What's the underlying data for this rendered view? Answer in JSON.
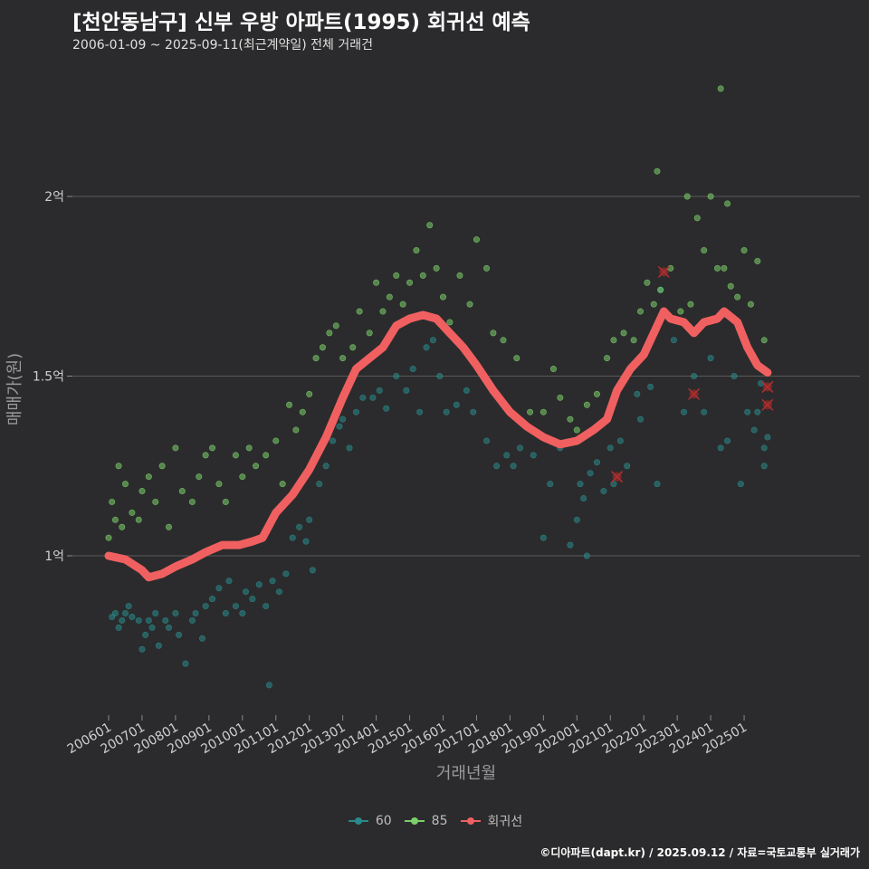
{
  "title": "[천안동남구] 신부 우방 아파트(1995) 회귀선 예측",
  "subtitle": "2006-01-09 ~ 2025-09-11(최근계약일) 전체 거래건",
  "caption": "©디아파트(dapt.kr) / 2025.09.12 / 자료=국토교통부 실거래가",
  "colors": {
    "background": "#2b2b2d",
    "series_60": "#2a8a8a",
    "series_85": "#7ccf6a",
    "regression": "#f06060",
    "grid": "#5a5a5a"
  },
  "chart_data": {
    "type": "scatter",
    "title": "[천안동남구] 신부 우방 아파트(1995) 회귀선 예측",
    "subtitle": "2006-01-09 ~ 2025-09-11(최근계약일) 전체 거래건",
    "xlabel": "거래년월",
    "ylabel": "매매가(원)",
    "xlim": [
      "2006-01",
      "2025-09"
    ],
    "ylim": [
      0.6,
      2.5
    ],
    "grid": true,
    "legend_position": "bottom",
    "x_ticks": [
      "200601",
      "200701",
      "200801",
      "200901",
      "201001",
      "201101",
      "201201",
      "201301",
      "201401",
      "201501",
      "201601",
      "201701",
      "201801",
      "201901",
      "202001",
      "202101",
      "202201",
      "202301",
      "202401",
      "202501"
    ],
    "y_ticks": [
      {
        "value": 1.0,
        "label": "1억"
      },
      {
        "value": 1.5,
        "label": "1.5억"
      },
      {
        "value": 2.0,
        "label": "2억"
      }
    ],
    "legend": [
      "60",
      "85",
      "회귀선"
    ],
    "regression_line": [
      [
        2006.0,
        1.0
      ],
      [
        2006.5,
        0.99
      ],
      [
        2007.0,
        0.96
      ],
      [
        2007.2,
        0.94
      ],
      [
        2007.6,
        0.95
      ],
      [
        2008.0,
        0.97
      ],
      [
        2008.5,
        0.99
      ],
      [
        2008.9,
        1.01
      ],
      [
        2009.4,
        1.03
      ],
      [
        2009.9,
        1.03
      ],
      [
        2010.3,
        1.04
      ],
      [
        2010.6,
        1.05
      ],
      [
        2011.0,
        1.12
      ],
      [
        2011.5,
        1.17
      ],
      [
        2012.0,
        1.24
      ],
      [
        2012.5,
        1.33
      ],
      [
        2013.0,
        1.44
      ],
      [
        2013.4,
        1.52
      ],
      [
        2013.8,
        1.55
      ],
      [
        2014.2,
        1.58
      ],
      [
        2014.6,
        1.64
      ],
      [
        2015.0,
        1.66
      ],
      [
        2015.4,
        1.67
      ],
      [
        2015.8,
        1.66
      ],
      [
        2016.2,
        1.62
      ],
      [
        2016.6,
        1.58
      ],
      [
        2017.0,
        1.53
      ],
      [
        2017.5,
        1.46
      ],
      [
        2018.0,
        1.4
      ],
      [
        2018.5,
        1.36
      ],
      [
        2019.0,
        1.33
      ],
      [
        2019.5,
        1.31
      ],
      [
        2020.0,
        1.32
      ],
      [
        2020.5,
        1.35
      ],
      [
        2020.9,
        1.38
      ],
      [
        2021.2,
        1.46
      ],
      [
        2021.6,
        1.52
      ],
      [
        2022.0,
        1.56
      ],
      [
        2022.4,
        1.64
      ],
      [
        2022.6,
        1.68
      ],
      [
        2022.8,
        1.66
      ],
      [
        2023.2,
        1.65
      ],
      [
        2023.5,
        1.62
      ],
      [
        2023.8,
        1.65
      ],
      [
        2024.2,
        1.66
      ],
      [
        2024.4,
        1.68
      ],
      [
        2024.8,
        1.65
      ],
      [
        2025.1,
        1.58
      ],
      [
        2025.4,
        1.53
      ],
      [
        2025.7,
        1.51
      ]
    ],
    "anomalies": [
      [
        2021.2,
        1.22
      ],
      [
        2022.6,
        1.79
      ],
      [
        2023.5,
        1.45
      ],
      [
        2025.7,
        1.47
      ],
      [
        2025.7,
        1.42
      ]
    ],
    "series": [
      {
        "name": "60",
        "points": [
          [
            2006.1,
            0.83
          ],
          [
            2006.2,
            0.84
          ],
          [
            2006.3,
            0.8
          ],
          [
            2006.4,
            0.82
          ],
          [
            2006.5,
            0.84
          ],
          [
            2006.6,
            0.86
          ],
          [
            2006.7,
            0.83
          ],
          [
            2006.9,
            0.82
          ],
          [
            2007.0,
            0.74
          ],
          [
            2007.1,
            0.78
          ],
          [
            2007.2,
            0.82
          ],
          [
            2007.3,
            0.8
          ],
          [
            2007.4,
            0.84
          ],
          [
            2007.5,
            0.75
          ],
          [
            2007.7,
            0.82
          ],
          [
            2007.8,
            0.8
          ],
          [
            2008.0,
            0.84
          ],
          [
            2008.1,
            0.78
          ],
          [
            2008.3,
            0.7
          ],
          [
            2008.5,
            0.82
          ],
          [
            2008.6,
            0.84
          ],
          [
            2008.8,
            0.77
          ],
          [
            2008.9,
            0.86
          ],
          [
            2009.1,
            0.88
          ],
          [
            2009.3,
            0.91
          ],
          [
            2009.5,
            0.84
          ],
          [
            2009.6,
            0.93
          ],
          [
            2009.8,
            0.86
          ],
          [
            2010.0,
            0.84
          ],
          [
            2010.1,
            0.9
          ],
          [
            2010.3,
            0.88
          ],
          [
            2010.5,
            0.92
          ],
          [
            2010.7,
            0.86
          ],
          [
            2010.8,
            0.64
          ],
          [
            2010.9,
            0.93
          ],
          [
            2011.1,
            0.9
          ],
          [
            2011.3,
            0.95
          ],
          [
            2011.5,
            1.05
          ],
          [
            2011.7,
            1.08
          ],
          [
            2011.9,
            1.04
          ],
          [
            2012.0,
            1.1
          ],
          [
            2012.1,
            0.96
          ],
          [
            2012.3,
            1.2
          ],
          [
            2012.5,
            1.25
          ],
          [
            2012.7,
            1.32
          ],
          [
            2012.9,
            1.36
          ],
          [
            2013.0,
            1.38
          ],
          [
            2013.2,
            1.3
          ],
          [
            2013.4,
            1.4
          ],
          [
            2013.6,
            1.44
          ],
          [
            2013.9,
            1.44
          ],
          [
            2014.1,
            1.46
          ],
          [
            2014.3,
            1.41
          ],
          [
            2014.6,
            1.5
          ],
          [
            2014.9,
            1.46
          ],
          [
            2015.1,
            1.52
          ],
          [
            2015.3,
            1.4
          ],
          [
            2015.5,
            1.58
          ],
          [
            2015.7,
            1.6
          ],
          [
            2015.9,
            1.5
          ],
          [
            2016.1,
            1.4
          ],
          [
            2016.4,
            1.42
          ],
          [
            2016.7,
            1.46
          ],
          [
            2016.9,
            1.4
          ],
          [
            2017.3,
            1.32
          ],
          [
            2017.6,
            1.25
          ],
          [
            2017.9,
            1.28
          ],
          [
            2018.1,
            1.25
          ],
          [
            2018.3,
            1.3
          ],
          [
            2018.7,
            1.28
          ],
          [
            2019.0,
            1.05
          ],
          [
            2019.2,
            1.2
          ],
          [
            2019.5,
            1.3
          ],
          [
            2019.8,
            1.03
          ],
          [
            2020.0,
            1.1
          ],
          [
            2020.1,
            1.2
          ],
          [
            2020.2,
            1.16
          ],
          [
            2020.3,
            1.0
          ],
          [
            2020.4,
            1.23
          ],
          [
            2020.6,
            1.26
          ],
          [
            2020.8,
            1.18
          ],
          [
            2021.0,
            1.3
          ],
          [
            2021.1,
            1.2
          ],
          [
            2021.3,
            1.32
          ],
          [
            2021.5,
            1.25
          ],
          [
            2021.8,
            1.45
          ],
          [
            2021.9,
            1.38
          ],
          [
            2022.2,
            1.47
          ],
          [
            2022.4,
            1.2
          ],
          [
            2022.5,
            1.74
          ],
          [
            2022.9,
            1.6
          ],
          [
            2023.2,
            1.4
          ],
          [
            2023.5,
            1.5
          ],
          [
            2023.8,
            1.4
          ],
          [
            2024.0,
            1.55
          ],
          [
            2024.3,
            1.3
          ],
          [
            2024.5,
            1.32
          ],
          [
            2024.7,
            1.5
          ],
          [
            2024.9,
            1.2
          ],
          [
            2025.1,
            1.4
          ],
          [
            2025.3,
            1.35
          ],
          [
            2025.4,
            1.4
          ],
          [
            2025.5,
            1.48
          ],
          [
            2025.6,
            1.25
          ],
          [
            2025.6,
            1.3
          ],
          [
            2025.7,
            1.33
          ]
        ]
      },
      {
        "name": "85",
        "points": [
          [
            2006.0,
            1.05
          ],
          [
            2006.1,
            1.15
          ],
          [
            2006.2,
            1.1
          ],
          [
            2006.3,
            1.25
          ],
          [
            2006.4,
            1.08
          ],
          [
            2006.5,
            1.2
          ],
          [
            2006.7,
            1.12
          ],
          [
            2006.9,
            1.1
          ],
          [
            2007.0,
            1.18
          ],
          [
            2007.2,
            1.22
          ],
          [
            2007.4,
            1.15
          ],
          [
            2007.6,
            1.25
          ],
          [
            2007.8,
            1.08
          ],
          [
            2008.0,
            1.3
          ],
          [
            2008.2,
            1.18
          ],
          [
            2008.5,
            1.15
          ],
          [
            2008.7,
            1.22
          ],
          [
            2008.9,
            1.28
          ],
          [
            2009.1,
            1.3
          ],
          [
            2009.3,
            1.2
          ],
          [
            2009.5,
            1.15
          ],
          [
            2009.8,
            1.28
          ],
          [
            2010.0,
            1.22
          ],
          [
            2010.2,
            1.3
          ],
          [
            2010.4,
            1.25
          ],
          [
            2010.7,
            1.28
          ],
          [
            2011.0,
            1.32
          ],
          [
            2011.2,
            1.2
          ],
          [
            2011.4,
            1.42
          ],
          [
            2011.6,
            1.35
          ],
          [
            2011.8,
            1.4
          ],
          [
            2012.0,
            1.45
          ],
          [
            2012.2,
            1.55
          ],
          [
            2012.4,
            1.58
          ],
          [
            2012.6,
            1.62
          ],
          [
            2012.8,
            1.64
          ],
          [
            2013.0,
            1.55
          ],
          [
            2013.3,
            1.58
          ],
          [
            2013.5,
            1.68
          ],
          [
            2013.8,
            1.62
          ],
          [
            2014.0,
            1.76
          ],
          [
            2014.2,
            1.68
          ],
          [
            2014.4,
            1.72
          ],
          [
            2014.6,
            1.78
          ],
          [
            2014.8,
            1.7
          ],
          [
            2015.0,
            1.76
          ],
          [
            2015.2,
            1.85
          ],
          [
            2015.4,
            1.78
          ],
          [
            2015.6,
            1.92
          ],
          [
            2015.8,
            1.8
          ],
          [
            2016.0,
            1.72
          ],
          [
            2016.2,
            1.65
          ],
          [
            2016.5,
            1.78
          ],
          [
            2016.8,
            1.7
          ],
          [
            2017.0,
            1.88
          ],
          [
            2017.3,
            1.8
          ],
          [
            2017.5,
            1.62
          ],
          [
            2017.8,
            1.6
          ],
          [
            2018.2,
            1.55
          ],
          [
            2018.6,
            1.4
          ],
          [
            2019.0,
            1.4
          ],
          [
            2019.3,
            1.52
          ],
          [
            2019.5,
            1.44
          ],
          [
            2019.8,
            1.38
          ],
          [
            2020.0,
            1.35
          ],
          [
            2020.3,
            1.42
          ],
          [
            2020.6,
            1.45
          ],
          [
            2020.9,
            1.55
          ],
          [
            2021.1,
            1.6
          ],
          [
            2021.4,
            1.62
          ],
          [
            2021.7,
            1.6
          ],
          [
            2021.9,
            1.68
          ],
          [
            2022.1,
            1.76
          ],
          [
            2022.3,
            1.7
          ],
          [
            2022.5,
            1.74
          ],
          [
            2022.8,
            1.8
          ],
          [
            2023.1,
            1.68
          ],
          [
            2023.4,
            1.7
          ],
          [
            2023.6,
            1.94
          ],
          [
            2023.8,
            1.85
          ],
          [
            2024.0,
            2.0
          ],
          [
            2024.2,
            1.8
          ],
          [
            2024.4,
            1.8
          ],
          [
            2024.6,
            1.75
          ],
          [
            2024.8,
            1.72
          ],
          [
            2025.0,
            1.85
          ],
          [
            2025.2,
            1.7
          ],
          [
            2025.4,
            1.82
          ],
          [
            2025.6,
            1.6
          ],
          [
            2022.4,
            2.07
          ],
          [
            2023.3,
            2.0
          ],
          [
            2024.5,
            1.98
          ],
          [
            2024.3,
            2.3
          ]
        ]
      }
    ]
  }
}
